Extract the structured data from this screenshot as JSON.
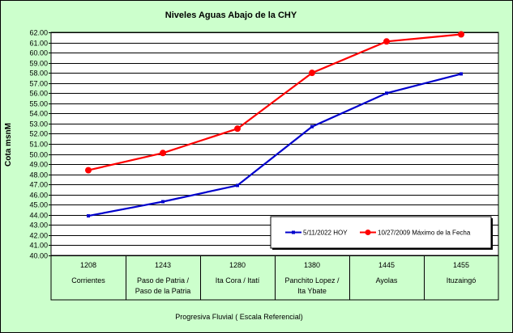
{
  "chart_data": {
    "type": "line",
    "title": "Niveles Aguas Abajo de la CHY",
    "ylabel": "Cota msnM",
    "xlabel": "Progresiva Fluvial ( Escala Referencial)",
    "ylim": [
      40.0,
      62.0
    ],
    "ytick_step": 1.0,
    "grid": true,
    "legend_position": "bottom-right",
    "categories": [
      {
        "code": "1208",
        "name_lines": [
          "Corrientes"
        ]
      },
      {
        "code": "1243",
        "name_lines": [
          "Paso de Patria /",
          "Paso de la Patria"
        ]
      },
      {
        "code": "1280",
        "name_lines": [
          "Ita Cora / Itatí"
        ]
      },
      {
        "code": "1380",
        "name_lines": [
          "Panchito Lopez /",
          "Ita Ybate"
        ]
      },
      {
        "code": "1445",
        "name_lines": [
          "Ayolas"
        ]
      },
      {
        "code": "1455",
        "name_lines": [
          "Ituzaingó"
        ]
      }
    ],
    "series": [
      {
        "name": "5/11/2022 HOY",
        "color": "#0000cc",
        "marker": "small",
        "values": [
          43.9,
          45.3,
          46.9,
          52.7,
          56.0,
          57.9
        ]
      },
      {
        "name": "10/27/2009 Máximo de la Fecha",
        "color": "#ff0000",
        "marker": "large",
        "values": [
          48.4,
          50.1,
          52.5,
          58.0,
          61.1,
          61.8
        ]
      }
    ]
  },
  "colors": {
    "frame_background": "#ccffcc",
    "plot_background": "#ffffff",
    "grid": "#000000"
  }
}
